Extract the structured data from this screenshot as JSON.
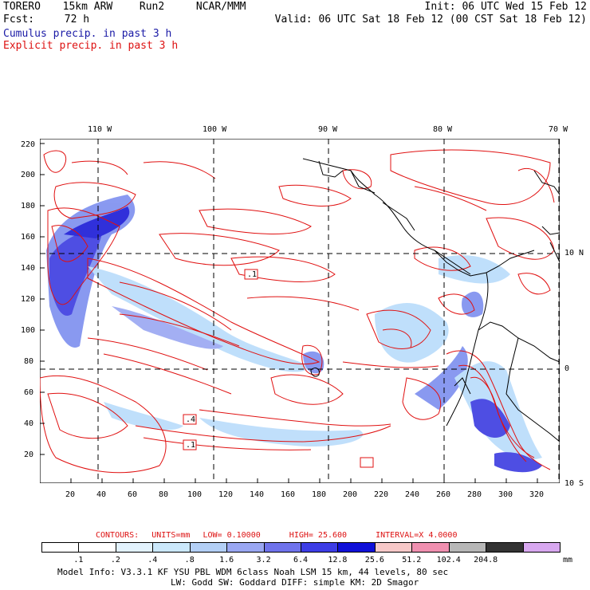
{
  "header": {
    "model": "TORERO",
    "resolution": "15km ARW",
    "run": "Run2",
    "org": "NCAR/MMM",
    "init": "Init: 06 UTC Wed 15 Feb 12",
    "fcst_label": "Fcst:",
    "fcst_value": "72 h",
    "valid": "Valid: 06 UTC Sat 18 Feb 12 (00 CST Sat 18 Feb 12)",
    "line_cumulus": "Cumulus precip. in past 3 h",
    "line_explicit": "Explicit precip. in past 3 h"
  },
  "map": {
    "lon_labels": [
      "110 W",
      "100 W",
      "90 W",
      "80 W",
      "70 W"
    ],
    "lat_labels": [
      "10 N",
      "0",
      "10 S"
    ],
    "y_ticks": [
      "220",
      "200",
      "180",
      "160",
      "140",
      "120",
      "100",
      "80",
      "60",
      "40",
      "20"
    ],
    "x_ticks": [
      "20",
      "40",
      "60",
      "80",
      "100",
      "120",
      "140",
      "160",
      "180",
      "200",
      "220",
      "240",
      "260",
      "280",
      "300",
      "320"
    ],
    "contour_labels": [
      ".1",
      ".4",
      ".1"
    ],
    "grid_color": "#000000",
    "contour_color": "#e01010",
    "precip_colors": [
      "#b9dcfb",
      "#7d8fef",
      "#3b3be0",
      "#1a1ad6"
    ]
  },
  "contours_line": {
    "contours": "CONTOURS:",
    "units": "UNITS=mm",
    "low": "LOW= 0.10000",
    "high": "HIGH= 25.600",
    "interval": "INTERVAL=X 4.0000"
  },
  "scale": {
    "labels": [
      ".1",
      ".2",
      ".4",
      ".8",
      "1.6",
      "3.2",
      "6.4",
      "12.8",
      "25.6",
      "51.2",
      "102.4",
      "204.8"
    ],
    "unit": "mm",
    "colors": [
      "#ffffff",
      "#ffffff",
      "#e2f2fd",
      "#cbe8fb",
      "#b3cff5",
      "#9aa7f2",
      "#6f73ec",
      "#3d3de6",
      "#0f10d8",
      "#f7c9c9",
      "#f090b0",
      "#b7b7b7",
      "#333333",
      "#d8a8f0"
    ]
  },
  "footer": {
    "line1": "Model Info: V3.3.1   KF    YSU PBL  WDM 6class  Noah LSM  15 km,   44 levels,   80 sec",
    "line2": "LW: Godd SW: Goddard DIFF: simple KM: 2D Smagor"
  }
}
